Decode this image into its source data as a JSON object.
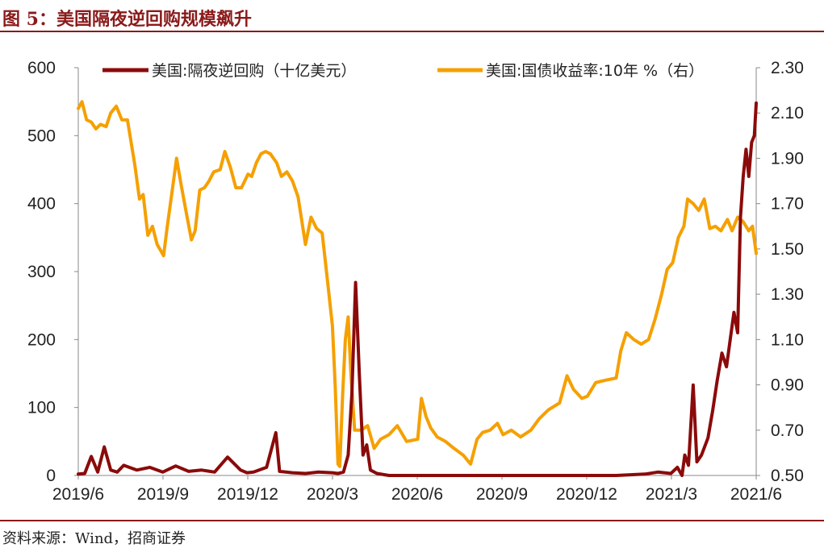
{
  "header": {
    "title": "图 5：美国隔夜逆回购规模飙升"
  },
  "footer": {
    "source": "资料来源：Wind，招商证券"
  },
  "colors": {
    "series_repo": "#8B0A0A",
    "series_yield": "#F5A000",
    "frame": "#8B1A1A"
  },
  "chart_data": {
    "type": "line",
    "title": "",
    "grid": false,
    "legend_position": "top",
    "x_axis": {
      "tick_labels": [
        "2019/6",
        "2019/9",
        "2019/12",
        "2020/3",
        "2020/6",
        "2020/9",
        "2020/12",
        "2021/3",
        "2021/6"
      ],
      "range": [
        "2019-06-01",
        "2021-06-01"
      ]
    },
    "y_left": {
      "ylim": [
        0,
        600
      ],
      "ticks": [
        "0",
        "100",
        "200",
        "300",
        "400",
        "500",
        "600"
      ]
    },
    "y_right": {
      "ylim": [
        0.5,
        2.3
      ],
      "ticks": [
        "0.50",
        "0.70",
        "0.90",
        "1.10",
        "1.30",
        "1.50",
        "1.70",
        "1.90",
        "2.10",
        "2.30"
      ]
    },
    "series": [
      {
        "name": "美国:隔夜逆回购（十亿美元）",
        "axis": "left",
        "x": [
          "2019-06-01",
          "2019-06-08",
          "2019-06-15",
          "2019-06-22",
          "2019-06-29",
          "2019-07-06",
          "2019-07-13",
          "2019-07-20",
          "2019-08-03",
          "2019-08-17",
          "2019-08-31",
          "2019-09-14",
          "2019-09-28",
          "2019-10-12",
          "2019-10-26",
          "2019-11-09",
          "2019-11-23",
          "2019-11-30",
          "2019-12-07",
          "2019-12-21",
          "2019-12-31",
          "2020-01-04",
          "2020-01-18",
          "2020-02-01",
          "2020-02-15",
          "2020-03-01",
          "2020-03-07",
          "2020-03-13",
          "2020-03-18",
          "2020-03-22",
          "2020-03-26",
          "2020-03-30",
          "2020-04-03",
          "2020-04-07",
          "2020-04-11",
          "2020-04-18",
          "2020-05-01",
          "2020-05-15",
          "2020-06-01",
          "2020-07-01",
          "2020-08-01",
          "2020-09-01",
          "2020-10-01",
          "2020-11-01",
          "2020-12-01",
          "2021-01-01",
          "2021-02-01",
          "2021-02-15",
          "2021-03-01",
          "2021-03-08",
          "2021-03-13",
          "2021-03-16",
          "2021-03-20",
          "2021-03-25",
          "2021-03-29",
          "2021-04-03",
          "2021-04-10",
          "2021-04-15",
          "2021-04-20",
          "2021-04-25",
          "2021-04-30",
          "2021-05-04",
          "2021-05-08",
          "2021-05-12",
          "2021-05-15",
          "2021-05-18",
          "2021-05-21",
          "2021-05-24",
          "2021-05-27",
          "2021-05-30",
          "2021-06-01"
        ],
        "values": [
          2,
          3,
          28,
          5,
          42,
          8,
          5,
          15,
          8,
          12,
          5,
          14,
          6,
          8,
          5,
          27,
          8,
          4,
          5,
          12,
          63,
          6,
          4,
          3,
          5,
          4,
          3,
          5,
          30,
          120,
          284,
          150,
          30,
          45,
          8,
          3,
          0,
          0,
          0,
          0,
          0,
          0,
          0,
          0,
          0,
          0,
          2,
          5,
          3,
          12,
          0,
          30,
          15,
          133,
          20,
          30,
          55,
          95,
          140,
          180,
          160,
          200,
          240,
          210,
          380,
          440,
          480,
          440,
          490,
          500,
          548
        ]
      },
      {
        "name": "美国:国债收益率:10年 %（右）",
        "axis": "right",
        "x": [
          "2019-06-01",
          "2019-06-05",
          "2019-06-10",
          "2019-06-15",
          "2019-06-20",
          "2019-06-25",
          "2019-07-01",
          "2019-07-06",
          "2019-07-12",
          "2019-07-18",
          "2019-07-24",
          "2019-08-01",
          "2019-08-06",
          "2019-08-10",
          "2019-08-15",
          "2019-08-20",
          "2019-08-25",
          "2019-09-01",
          "2019-09-05",
          "2019-09-10",
          "2019-09-15",
          "2019-09-20",
          "2019-09-25",
          "2019-10-01",
          "2019-10-05",
          "2019-10-10",
          "2019-10-15",
          "2019-10-20",
          "2019-10-25",
          "2019-11-01",
          "2019-11-06",
          "2019-11-12",
          "2019-11-18",
          "2019-11-24",
          "2019-12-01",
          "2019-12-05",
          "2019-12-10",
          "2019-12-15",
          "2019-12-20",
          "2019-12-25",
          "2020-01-01",
          "2020-01-06",
          "2020-01-12",
          "2020-01-18",
          "2020-01-24",
          "2020-02-01",
          "2020-02-07",
          "2020-02-13",
          "2020-02-19",
          "2020-02-25",
          "2020-03-01",
          "2020-03-04",
          "2020-03-07",
          "2020-03-09",
          "2020-03-12",
          "2020-03-15",
          "2020-03-18",
          "2020-03-21",
          "2020-03-25",
          "2020-04-01",
          "2020-04-08",
          "2020-04-15",
          "2020-04-22",
          "2020-05-01",
          "2020-05-10",
          "2020-05-20",
          "2020-06-01",
          "2020-06-05",
          "2020-06-10",
          "2020-06-15",
          "2020-06-22",
          "2020-07-01",
          "2020-07-10",
          "2020-07-20",
          "2020-07-28",
          "2020-08-04",
          "2020-08-10",
          "2020-08-18",
          "2020-08-26",
          "2020-09-01",
          "2020-09-10",
          "2020-09-20",
          "2020-10-01",
          "2020-10-10",
          "2020-10-20",
          "2020-11-01",
          "2020-11-09",
          "2020-11-16",
          "2020-11-25",
          "2020-12-01",
          "2020-12-10",
          "2020-12-20",
          "2021-01-01",
          "2021-01-06",
          "2021-01-12",
          "2021-01-20",
          "2021-01-28",
          "2021-02-05",
          "2021-02-12",
          "2021-02-19",
          "2021-02-25",
          "2021-03-03",
          "2021-03-09",
          "2021-03-15",
          "2021-03-19",
          "2021-03-25",
          "2021-03-31",
          "2021-04-06",
          "2021-04-12",
          "2021-04-18",
          "2021-04-24",
          "2021-05-01",
          "2021-05-06",
          "2021-05-12",
          "2021-05-18",
          "2021-05-24",
          "2021-05-28",
          "2021-06-01"
        ],
        "values": [
          2.12,
          2.15,
          2.07,
          2.06,
          2.03,
          2.05,
          2.04,
          2.1,
          2.13,
          2.07,
          2.07,
          1.87,
          1.72,
          1.74,
          1.56,
          1.6,
          1.52,
          1.47,
          1.6,
          1.75,
          1.9,
          1.78,
          1.67,
          1.54,
          1.58,
          1.76,
          1.77,
          1.8,
          1.84,
          1.85,
          1.93,
          1.86,
          1.77,
          1.77,
          1.83,
          1.82,
          1.88,
          1.92,
          1.93,
          1.92,
          1.88,
          1.82,
          1.84,
          1.8,
          1.73,
          1.52,
          1.64,
          1.59,
          1.57,
          1.35,
          1.16,
          0.9,
          0.55,
          0.54,
          0.85,
          1.1,
          1.2,
          0.95,
          0.7,
          0.7,
          0.72,
          0.62,
          0.66,
          0.68,
          0.72,
          0.65,
          0.66,
          0.84,
          0.76,
          0.71,
          0.67,
          0.65,
          0.62,
          0.59,
          0.55,
          0.66,
          0.69,
          0.7,
          0.73,
          0.68,
          0.7,
          0.67,
          0.7,
          0.75,
          0.79,
          0.82,
          0.94,
          0.88,
          0.84,
          0.85,
          0.91,
          0.92,
          0.93,
          1.05,
          1.13,
          1.1,
          1.08,
          1.1,
          1.19,
          1.3,
          1.41,
          1.44,
          1.55,
          1.6,
          1.72,
          1.7,
          1.67,
          1.72,
          1.59,
          1.6,
          1.58,
          1.63,
          1.58,
          1.64,
          1.62,
          1.58,
          1.6,
          1.48
        ]
      }
    ]
  }
}
